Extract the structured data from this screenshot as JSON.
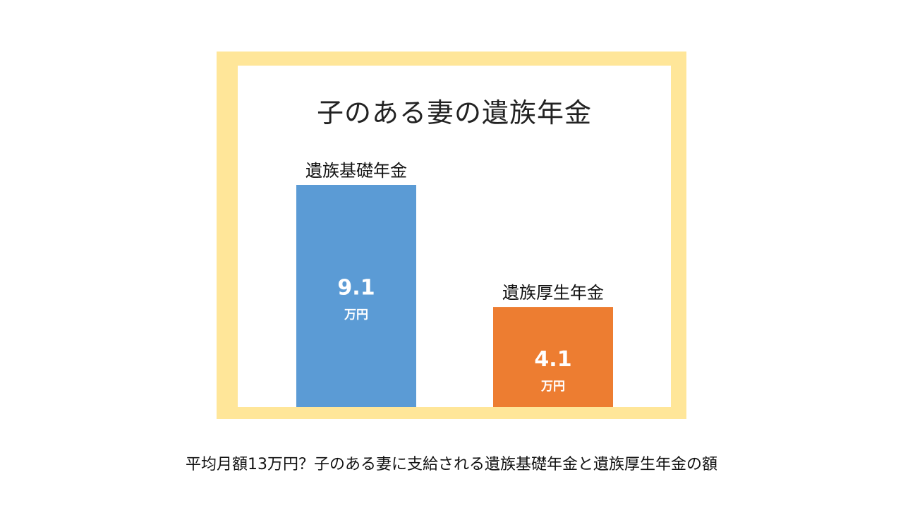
{
  "chart_data": {
    "type": "bar",
    "title": "子のある妻の遺族年金",
    "categories": [
      "遺族基礎年金",
      "遺族厚生年金"
    ],
    "values": [
      9.1,
      4.1
    ],
    "value_labels": [
      "9.1",
      "4.1"
    ],
    "unit_label": "万円",
    "colors": [
      "#5b9bd5",
      "#ed7d31"
    ],
    "xlabel": "",
    "ylabel": "",
    "ylim": [
      0,
      9.1
    ],
    "grid": false,
    "legend": "none"
  },
  "caption": "平均月額13万円？子のある妻に支給される遺族基礎年金と遺族厚生年金の額",
  "colors": {
    "frame": "#ffe699"
  }
}
